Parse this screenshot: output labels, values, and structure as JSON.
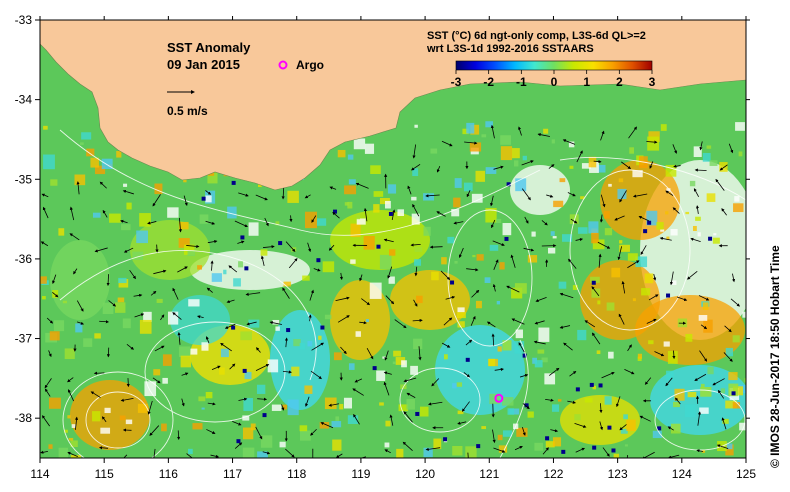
{
  "map": {
    "title": "SST Anomaly",
    "date": "09 Jan 2015",
    "legend_label": "Argo",
    "velocity_label": "0.5 m/s",
    "colorbar": {
      "title_line1": "SST (°C) 6d ngt-only comp, L3S-6d QL>=2",
      "title_line2": "wrt L3S-1d 1992-2016 SSTAARS",
      "ticks": [
        "-3",
        "-2",
        "-1",
        "0",
        "1",
        "2",
        "3"
      ],
      "colors": [
        "#00006a",
        "#0000e0",
        "#0050ff",
        "#00b8ff",
        "#40e8d0",
        "#70e060",
        "#c8e800",
        "#f8e000",
        "#f8a000",
        "#e05000",
        "#a00000"
      ]
    },
    "credit": "©  IMOS 28-Jun-2017 18:50 Hobart Time",
    "x_ticks": [
      "114",
      "115",
      "116",
      "117",
      "118",
      "119",
      "120",
      "121",
      "122",
      "123",
      "124",
      "125"
    ],
    "y_ticks": [
      "-33",
      "-34",
      "-35",
      "-36",
      "-37",
      "-38"
    ],
    "argo_floats": [
      {
        "lon": 121.15,
        "lat": -37.75
      }
    ],
    "colors": {
      "land": "#f8c89a",
      "ocean_base": "#58c858",
      "argo": "#ff00ff",
      "contour": "#ffffff",
      "arrow": "#000000"
    }
  }
}
